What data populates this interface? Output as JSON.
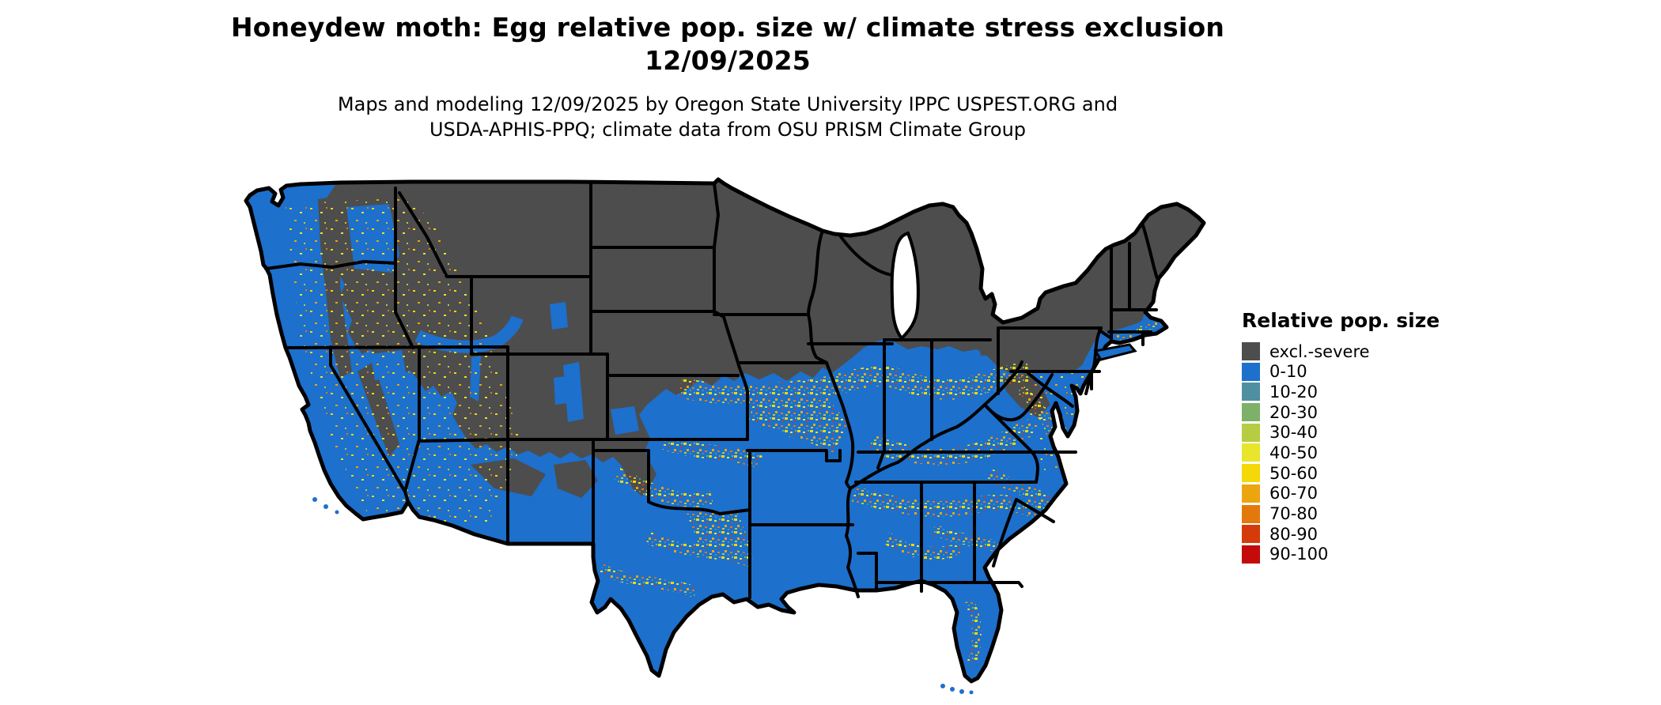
{
  "title": {
    "line1": "Honeydew moth: Egg relative pop. size w/ climate stress exclusion",
    "line2": "12/09/2025"
  },
  "subtitle": {
    "line1": "Maps and modeling 12/09/2025 by Oregon State University IPPC USPEST.ORG and",
    "line2": "USDA-APHIS-PPQ; climate data from OSU PRISM Climate Group"
  },
  "legend": {
    "title": "Relative pop. size",
    "items": [
      {
        "label": "excl.-severe",
        "color": "#4D4D4D"
      },
      {
        "label": "0-10",
        "color": "#1D70CC"
      },
      {
        "label": "10-20",
        "color": "#4E90A1"
      },
      {
        "label": "20-30",
        "color": "#7DB069"
      },
      {
        "label": "30-40",
        "color": "#B6CC43"
      },
      {
        "label": "40-50",
        "color": "#E8E52C"
      },
      {
        "label": "50-60",
        "color": "#F5D807"
      },
      {
        "label": "60-70",
        "color": "#ECA50F"
      },
      {
        "label": "70-80",
        "color": "#E3790D"
      },
      {
        "label": "80-90",
        "color": "#D53A0B"
      },
      {
        "label": "90-100",
        "color": "#C40A0A"
      }
    ]
  },
  "map": {
    "region": "Continental United States",
    "colors": {
      "base": "#1D70CC",
      "excluded": "#4D4D4D",
      "border": "#000000",
      "water": "#FFFFFF",
      "speckle": {
        "teal10": "#4E90A1",
        "green20": "#7DB069",
        "yg30": "#B6CC43",
        "y40": "#E8E52C",
        "y50": "#F5D807",
        "o60": "#ECA50F",
        "o70": "#E3790D",
        "r80": "#D53A0B",
        "r90": "#C40A0A"
      }
    }
  }
}
